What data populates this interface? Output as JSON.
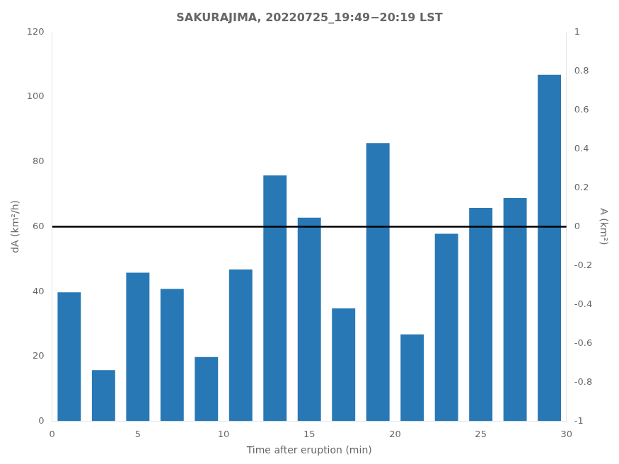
{
  "chart_data": {
    "type": "bar",
    "title": "SAKURAJIMA, 20220725_19:49−20:19 LST",
    "x": [
      1,
      3,
      5,
      7,
      9,
      11,
      13,
      15,
      17,
      19,
      21,
      23,
      25,
      27,
      29
    ],
    "values": [
      40,
      16,
      46,
      41,
      20,
      47,
      76,
      63,
      35,
      86,
      27,
      58,
      66,
      69,
      107
    ],
    "color": "#2878b5",
    "xlabel": "Time after eruption (min)",
    "ylabel": "dA (km²/h)",
    "y2label": "A (km²)",
    "xlim": [
      0,
      30
    ],
    "xticks": [
      0,
      5,
      10,
      15,
      20,
      25,
      30
    ],
    "ylim": [
      0,
      120
    ],
    "yticks": [
      0,
      20,
      40,
      60,
      80,
      100,
      120
    ],
    "y2lim": [
      -1,
      1
    ],
    "y2ticks": [
      -1.0,
      -0.8,
      -0.6,
      -0.4,
      -0.2,
      0,
      0.2,
      0.4,
      0.6,
      0.8,
      1.0
    ],
    "hline": {
      "value": 60,
      "color": "#000000"
    },
    "grid": false
  }
}
